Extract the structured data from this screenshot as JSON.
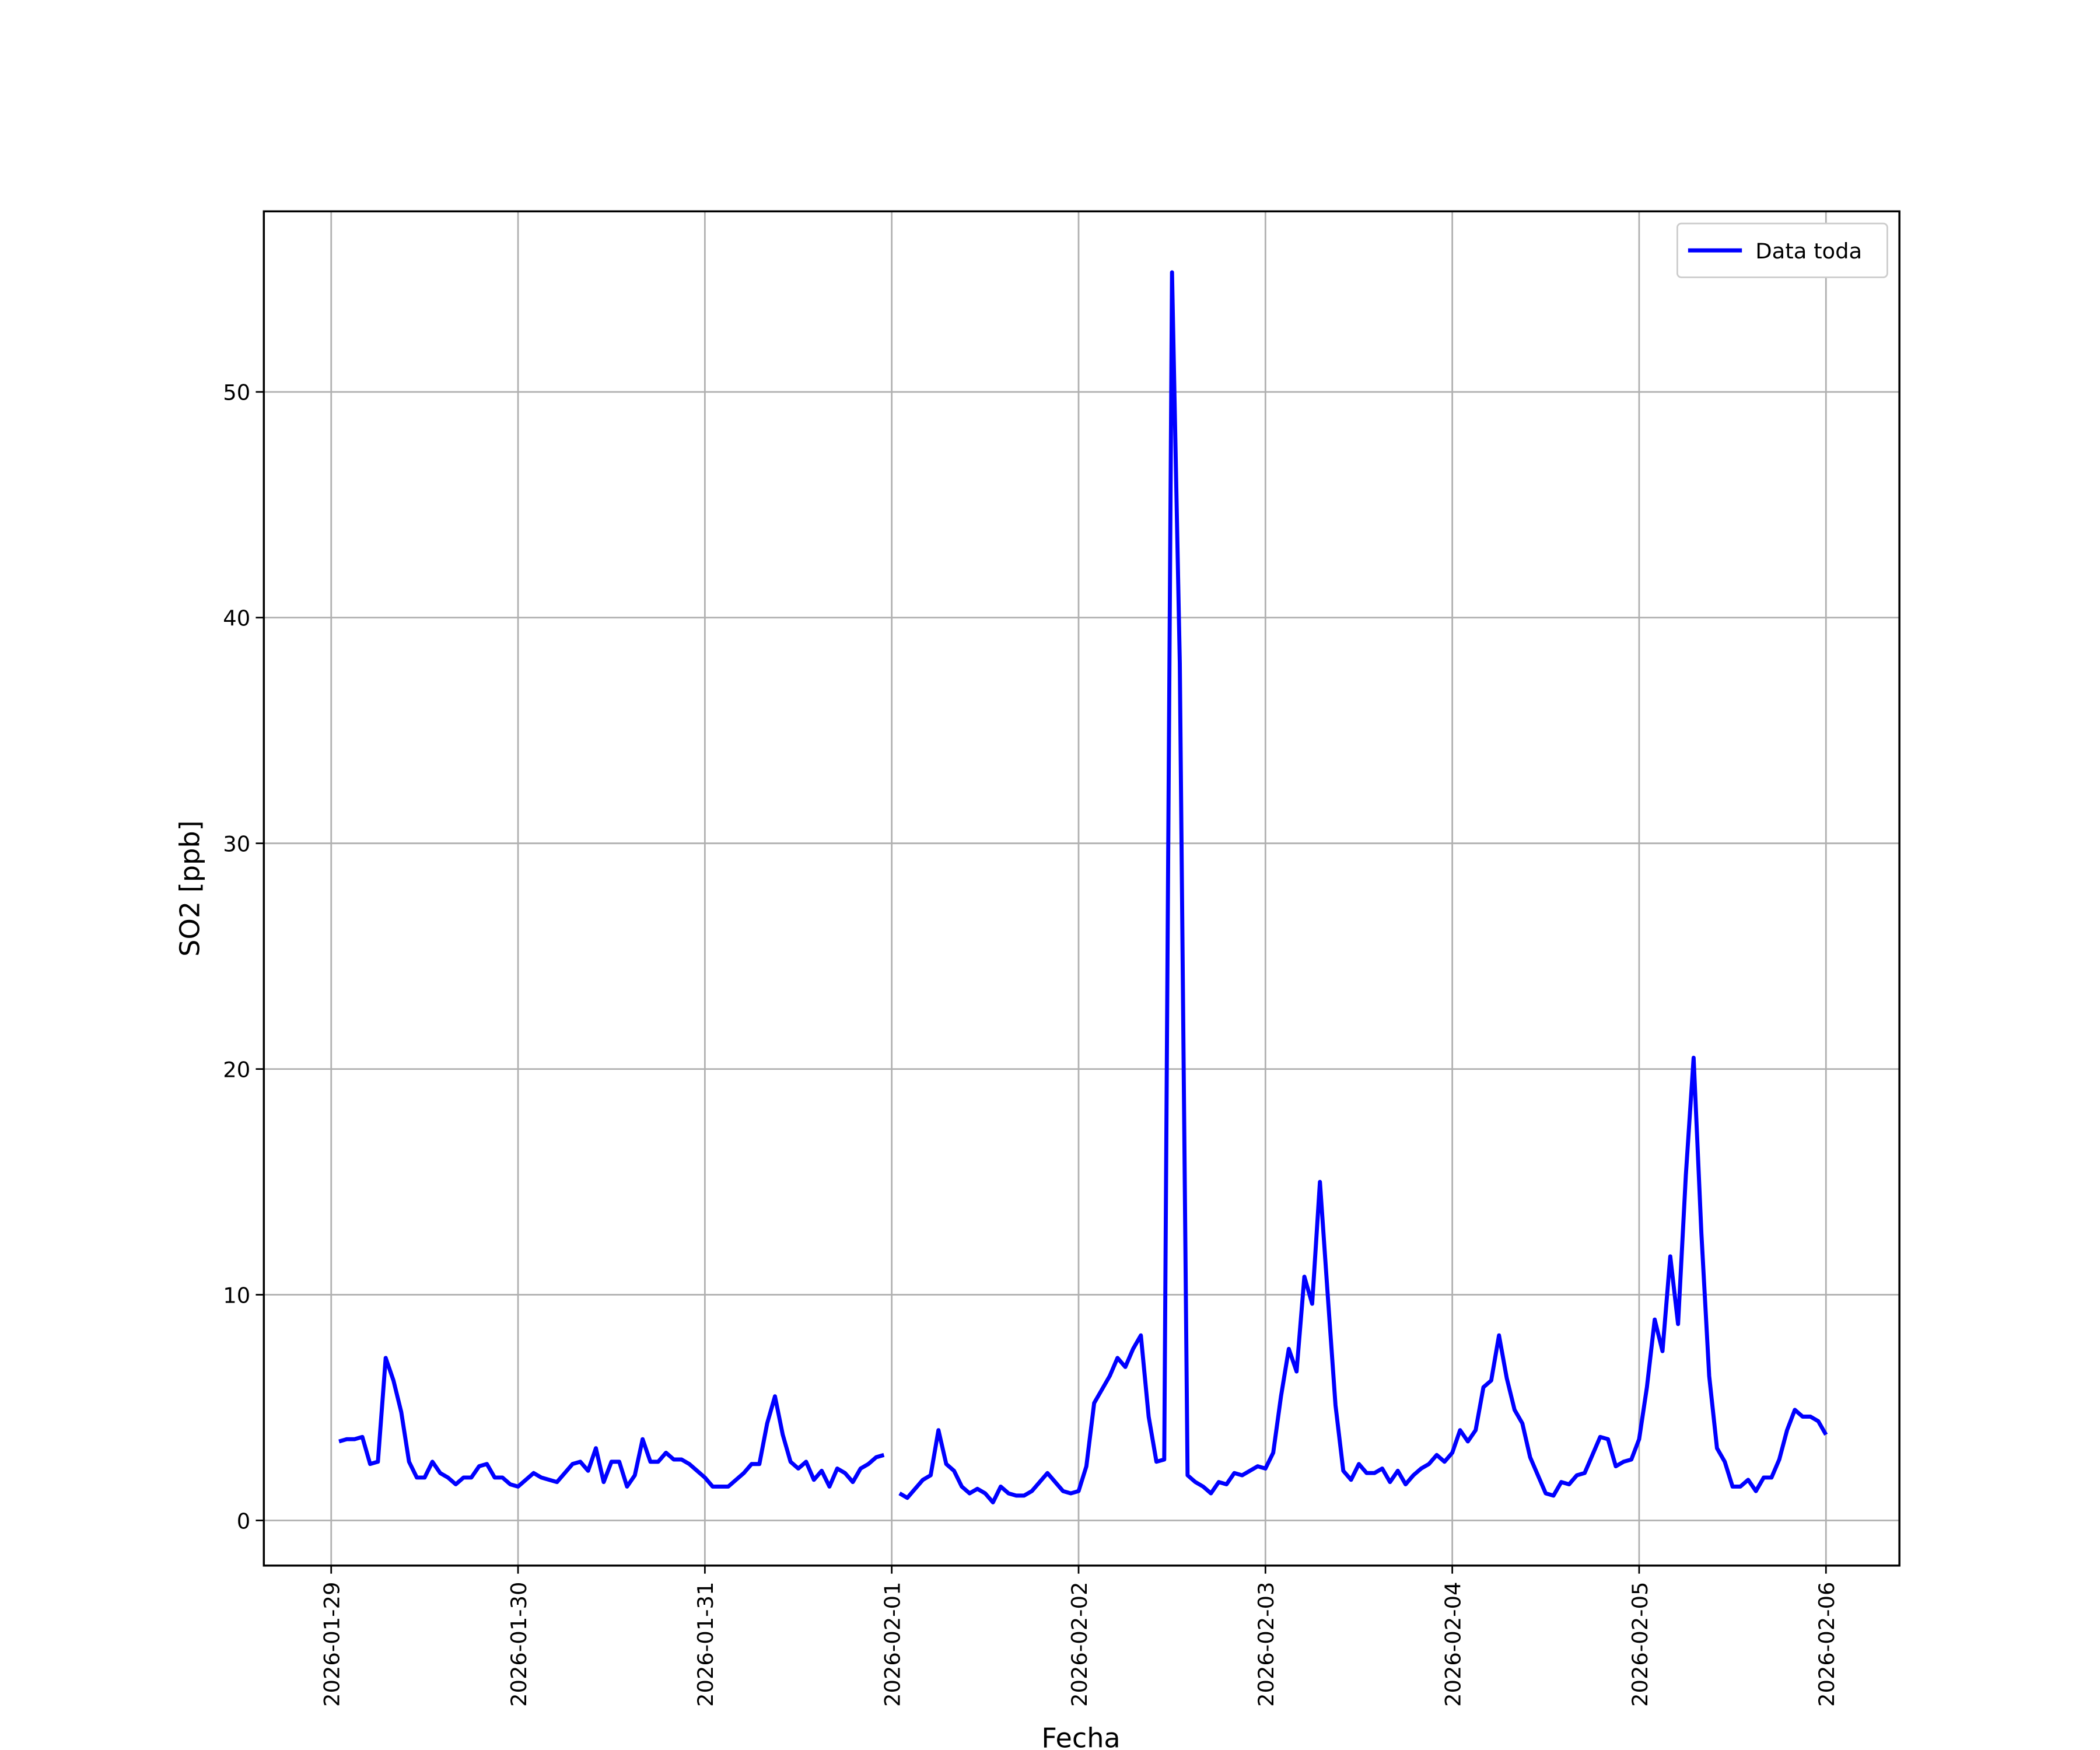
{
  "chart_data": {
    "type": "line",
    "xlabel": "Fecha",
    "ylabel": "SO2 [ppb]",
    "x": [
      "2026-01-29 01:00",
      "2026-01-29 02:00",
      "2026-01-29 03:00",
      "2026-01-29 04:00",
      "2026-01-29 05:00",
      "2026-01-29 06:00",
      "2026-01-29 07:00",
      "2026-01-29 08:00",
      "2026-01-29 09:00",
      "2026-01-29 10:00",
      "2026-01-29 11:00",
      "2026-01-29 12:00",
      "2026-01-29 13:00",
      "2026-01-29 14:00",
      "2026-01-29 15:00",
      "2026-01-29 16:00",
      "2026-01-29 17:00",
      "2026-01-29 18:00",
      "2026-01-29 19:00",
      "2026-01-29 20:00",
      "2026-01-29 21:00",
      "2026-01-29 22:00",
      "2026-01-29 23:00",
      "2026-01-30 00:00",
      "2026-01-30 01:00",
      "2026-01-30 02:00",
      "2026-01-30 03:00",
      "2026-01-30 04:00",
      "2026-01-30 05:00",
      "2026-01-30 06:00",
      "2026-01-30 07:00",
      "2026-01-30 08:00",
      "2026-01-30 09:00",
      "2026-01-30 10:00",
      "2026-01-30 11:00",
      "2026-01-30 12:00",
      "2026-01-30 13:00",
      "2026-01-30 14:00",
      "2026-01-30 15:00",
      "2026-01-30 16:00",
      "2026-01-30 17:00",
      "2026-01-30 18:00",
      "2026-01-30 19:00",
      "2026-01-30 20:00",
      "2026-01-30 21:00",
      "2026-01-30 22:00",
      "2026-01-30 23:00",
      "2026-01-31 00:00",
      "2026-01-31 01:00",
      "2026-01-31 02:00",
      "2026-01-31 03:00",
      "2026-01-31 04:00",
      "2026-01-31 05:00",
      "2026-01-31 06:00",
      "2026-01-31 07:00",
      "2026-01-31 08:00",
      "2026-01-31 09:00",
      "2026-01-31 10:00",
      "2026-01-31 11:00",
      "2026-01-31 12:00",
      "2026-01-31 13:00",
      "2026-01-31 14:00",
      "2026-01-31 15:00",
      "2026-01-31 16:00",
      "2026-01-31 17:00",
      "2026-01-31 18:00",
      "2026-01-31 19:00",
      "2026-01-31 20:00",
      "2026-01-31 21:00",
      "2026-01-31 22:00",
      "2026-01-31 23:00",
      "2026-02-01 00:00",
      "2026-02-01 01:00",
      "2026-02-01 02:00",
      "2026-02-01 03:00",
      "2026-02-01 04:00",
      "2026-02-01 05:00",
      "2026-02-01 06:00",
      "2026-02-01 07:00",
      "2026-02-01 08:00",
      "2026-02-01 09:00",
      "2026-02-01 10:00",
      "2026-02-01 11:00",
      "2026-02-01 12:00",
      "2026-02-01 13:00",
      "2026-02-01 14:00",
      "2026-02-01 15:00",
      "2026-02-01 16:00",
      "2026-02-01 17:00",
      "2026-02-01 18:00",
      "2026-02-01 19:00",
      "2026-02-01 20:00",
      "2026-02-01 21:00",
      "2026-02-01 22:00",
      "2026-02-01 23:00",
      "2026-02-02 00:00",
      "2026-02-02 01:00",
      "2026-02-02 02:00",
      "2026-02-02 03:00",
      "2026-02-02 04:00",
      "2026-02-02 05:00",
      "2026-02-02 06:00",
      "2026-02-02 07:00",
      "2026-02-02 08:00",
      "2026-02-02 09:00",
      "2026-02-02 10:00",
      "2026-02-02 11:00",
      "2026-02-02 12:00",
      "2026-02-02 13:00",
      "2026-02-02 14:00",
      "2026-02-02 15:00",
      "2026-02-02 16:00",
      "2026-02-02 17:00",
      "2026-02-02 18:00",
      "2026-02-02 19:00",
      "2026-02-02 20:00",
      "2026-02-02 21:00",
      "2026-02-02 22:00",
      "2026-02-02 23:00",
      "2026-02-03 00:00",
      "2026-02-03 01:00",
      "2026-02-03 02:00",
      "2026-02-03 03:00",
      "2026-02-03 04:00",
      "2026-02-03 05:00",
      "2026-02-03 06:00",
      "2026-02-03 07:00",
      "2026-02-03 08:00",
      "2026-02-03 09:00",
      "2026-02-03 10:00",
      "2026-02-03 11:00",
      "2026-02-03 12:00",
      "2026-02-03 13:00",
      "2026-02-03 14:00",
      "2026-02-03 15:00",
      "2026-02-03 16:00",
      "2026-02-03 17:00",
      "2026-02-03 18:00",
      "2026-02-03 19:00",
      "2026-02-03 20:00",
      "2026-02-03 21:00",
      "2026-02-03 22:00",
      "2026-02-03 23:00",
      "2026-02-04 00:00",
      "2026-02-04 01:00",
      "2026-02-04 02:00",
      "2026-02-04 03:00",
      "2026-02-04 04:00",
      "2026-02-04 05:00",
      "2026-02-04 06:00",
      "2026-02-04 07:00",
      "2026-02-04 08:00",
      "2026-02-04 09:00",
      "2026-02-04 10:00",
      "2026-02-04 11:00",
      "2026-02-04 12:00",
      "2026-02-04 13:00",
      "2026-02-04 14:00",
      "2026-02-04 15:00",
      "2026-02-04 16:00",
      "2026-02-04 17:00",
      "2026-02-04 18:00",
      "2026-02-04 19:00",
      "2026-02-04 20:00",
      "2026-02-04 21:00",
      "2026-02-04 22:00",
      "2026-02-04 23:00",
      "2026-02-05 00:00",
      "2026-02-05 01:00",
      "2026-02-05 02:00",
      "2026-02-05 03:00",
      "2026-02-05 04:00",
      "2026-02-05 05:00",
      "2026-02-05 06:00",
      "2026-02-05 07:00",
      "2026-02-05 08:00",
      "2026-02-05 09:00",
      "2026-02-05 10:00",
      "2026-02-05 11:00",
      "2026-02-05 12:00",
      "2026-02-05 13:00",
      "2026-02-05 14:00",
      "2026-02-05 15:00",
      "2026-02-05 16:00",
      "2026-02-05 17:00",
      "2026-02-05 18:00",
      "2026-02-05 19:00",
      "2026-02-05 20:00",
      "2026-02-05 21:00",
      "2026-02-05 22:00",
      "2026-02-05 23:00",
      "2026-02-06 00:00"
    ],
    "series": [
      {
        "name": "Data toda",
        "color": "#0000ff",
        "values": [
          3.5,
          3.6,
          3.6,
          3.7,
          2.5,
          2.6,
          7.2,
          6.2,
          4.8,
          2.6,
          1.9,
          1.9,
          2.6,
          2.1,
          1.9,
          1.6,
          1.9,
          1.9,
          2.4,
          2.5,
          1.9,
          1.9,
          1.6,
          1.5,
          1.8,
          2.1,
          1.9,
          1.8,
          1.7,
          2.1,
          2.5,
          2.6,
          2.2,
          3.2,
          1.7,
          2.6,
          2.6,
          1.5,
          2.0,
          3.6,
          2.6,
          2.6,
          3.0,
          2.7,
          2.7,
          2.5,
          2.2,
          1.9,
          1.5,
          1.5,
          1.5,
          1.8,
          2.1,
          2.5,
          2.5,
          4.3,
          5.5,
          3.8,
          2.6,
          2.3,
          2.6,
          1.8,
          2.2,
          1.5,
          2.3,
          2.1,
          1.7,
          2.3,
          2.5,
          2.8,
          2.9,
          null,
          1.2,
          1.0,
          1.4,
          1.8,
          2.0,
          4.0,
          2.5,
          2.2,
          1.5,
          1.2,
          1.4,
          1.2,
          0.8,
          1.5,
          1.2,
          1.1,
          1.1,
          1.3,
          1.7,
          2.1,
          1.7,
          1.3,
          1.2,
          1.3,
          2.4,
          5.2,
          5.8,
          6.4,
          7.2,
          6.8,
          7.6,
          8.2,
          4.6,
          2.6,
          2.7,
          55.3,
          38,
          2.0,
          1.7,
          1.5,
          1.2,
          1.7,
          1.6,
          2.1,
          2.0,
          2.2,
          2.4,
          2.3,
          3.0,
          5.5,
          7.6,
          6.6,
          10.8,
          9.6,
          15.0,
          10.0,
          5.1,
          2.2,
          1.8,
          2.5,
          2.1,
          2.1,
          2.3,
          1.7,
          2.2,
          1.6,
          2.0,
          2.3,
          2.5,
          2.9,
          2.6,
          3.0,
          4.0,
          3.5,
          4.0,
          5.9,
          6.2,
          8.2,
          6.3,
          4.9,
          4.3,
          2.8,
          2.0,
          1.2,
          1.1,
          1.7,
          1.6,
          2.0,
          2.1,
          2.9,
          3.7,
          3.6,
          2.4,
          2.6,
          2.7,
          3.6,
          5.9,
          8.9,
          7.5,
          11.7,
          8.7,
          15.3,
          20.5,
          12.7,
          6.4,
          3.2,
          2.6,
          1.5,
          1.5,
          1.8,
          1.3,
          1.9,
          1.9,
          2.7,
          4.0,
          4.9,
          4.6,
          4.6,
          4.4,
          3.8
        ]
      }
    ],
    "xlim": [
      "2026-01-28 15:21",
      "2026-02-06 09:26"
    ],
    "xticks": [
      "2026-01-29",
      "2026-01-30",
      "2026-01-31",
      "2026-02-01",
      "2026-02-02",
      "2026-02-03",
      "2026-02-04",
      "2026-02-05",
      "2026-02-06"
    ],
    "ylim": [
      -2,
      58
    ],
    "yticks": [
      0,
      10,
      20,
      30,
      40,
      50
    ],
    "grid": true,
    "legend": "upper-right"
  }
}
